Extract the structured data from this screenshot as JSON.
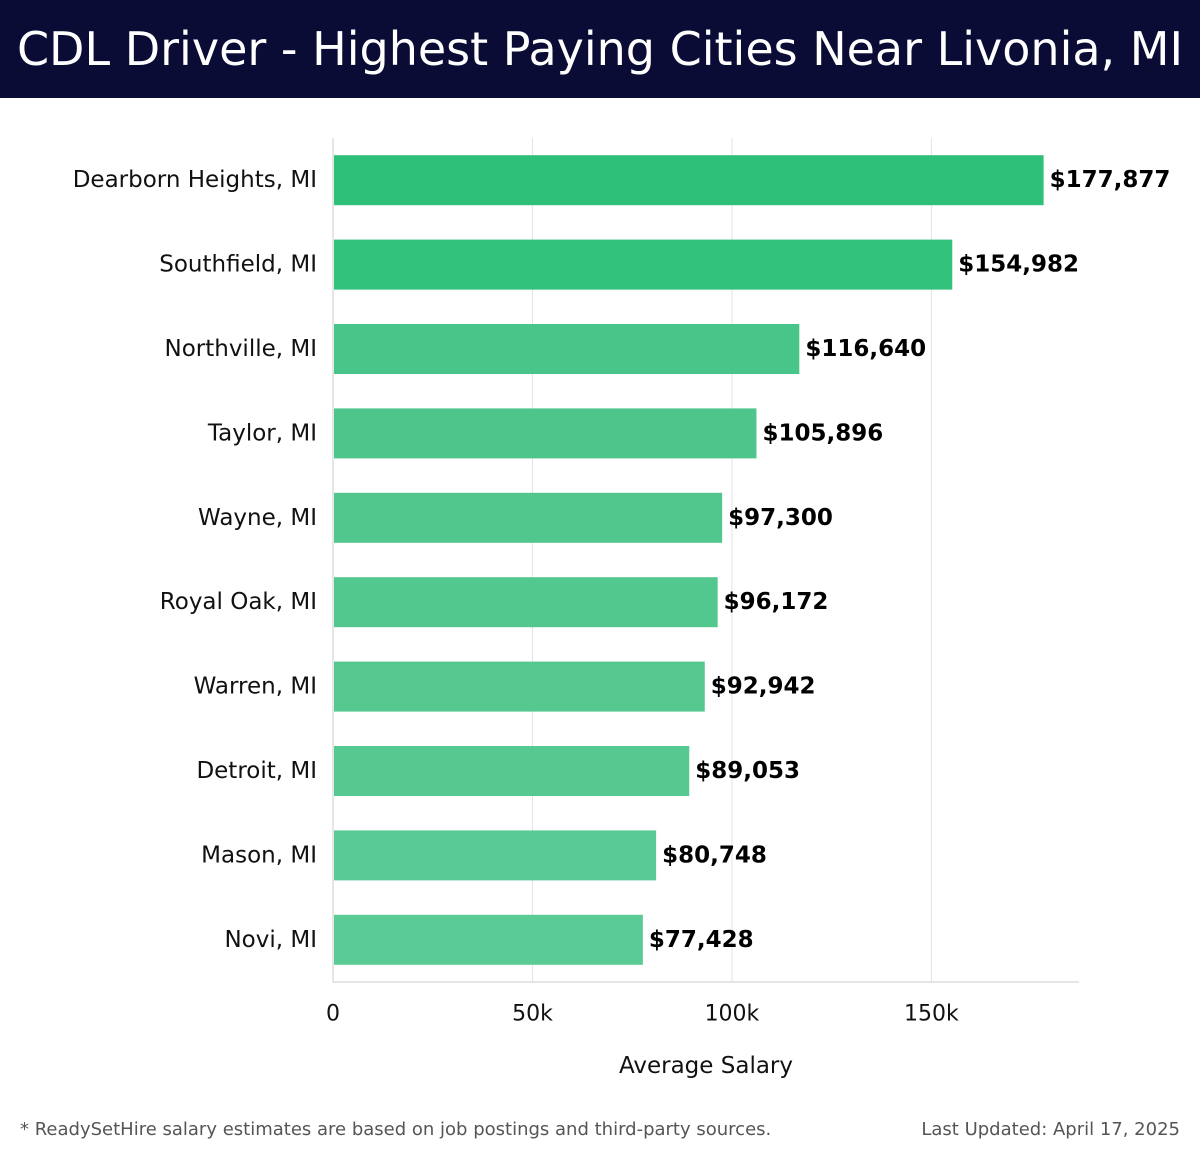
{
  "header": {
    "title": "CDL Driver - Highest Paying Cities Near Livonia, MI"
  },
  "chart_data": {
    "type": "bar",
    "orientation": "horizontal",
    "title": "CDL Driver - Highest Paying Cities Near Livonia, MI",
    "xlabel": "Average Salary",
    "ylabel": "",
    "xlim": [
      0,
      187000
    ],
    "x_ticks": [
      0,
      50000,
      100000,
      150000
    ],
    "x_tick_labels": [
      "0",
      "50k",
      "100k",
      "150k"
    ],
    "grid": "vertical",
    "categories": [
      "Dearborn Heights, MI",
      "Southfield, MI",
      "Northville, MI",
      "Taylor, MI",
      "Wayne, MI",
      "Royal Oak, MI",
      "Warren, MI",
      "Detroit, MI",
      "Mason, MI",
      "Novi, MI"
    ],
    "values": [
      177877,
      154982,
      116640,
      105896,
      97300,
      96172,
      92942,
      89053,
      80748,
      77428
    ],
    "value_labels": [
      "$177,877",
      "$154,982",
      "$116,640",
      "$105,896",
      "$97,300",
      "$96,172",
      "$92,942",
      "$89,053",
      "$80,748",
      "$77,428"
    ],
    "bar_colors": [
      "#2ebf78",
      "#33c27b",
      "#4ac589",
      "#4ec68b",
      "#51c78d",
      "#52c78e",
      "#54c88f",
      "#56c991",
      "#59ca93",
      "#5bcb95"
    ]
  },
  "footer": {
    "note": "* ReadySetHire salary estimates are based on job postings and third-party sources.",
    "updated": "Last Updated: April 17, 2025"
  }
}
